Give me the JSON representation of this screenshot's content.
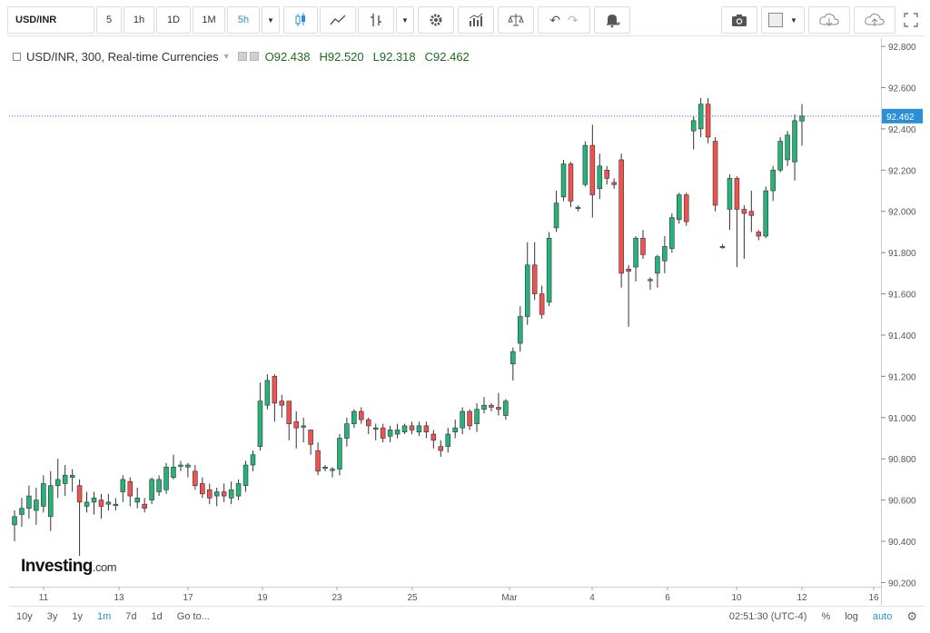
{
  "toolbar": {
    "symbol": "USD/INR",
    "intervals": [
      "5",
      "1h",
      "1D",
      "1M",
      "5h"
    ],
    "active_interval": "5h"
  },
  "legend": {
    "title": "USD/INR, 300, Real-time Currencies",
    "open": "O92.438",
    "high": "H92.520",
    "low": "L92.318",
    "close": "C92.462"
  },
  "last_price_label": "92.462",
  "logo": {
    "main": "Investing",
    "suffix": ".com"
  },
  "bottom_bar": {
    "ranges": [
      "10y",
      "3y",
      "1y",
      "1m",
      "7d",
      "1d",
      "Go to..."
    ],
    "active_range": "1m",
    "time": "02:51:30 (UTC-4)",
    "percent": "%",
    "log": "log",
    "auto": "auto"
  },
  "colors": {
    "up": "#26b37a",
    "down": "#ef5350",
    "last_line": "#2a5fd6",
    "label_bg": "#2a8fd6"
  },
  "chart_data": {
    "type": "candlestick",
    "title": "USD/INR, 300, Real-time Currencies",
    "y_ticks": [
      90.2,
      90.4,
      90.6,
      90.8,
      91.0,
      91.2,
      91.4,
      91.6,
      91.8,
      92.0,
      92.2,
      92.4,
      92.6,
      92.8
    ],
    "y_tick_labels": [
      "90.200",
      "90.400",
      "90.600",
      "90.800",
      "91.000",
      "91.200",
      "91.400",
      "91.600",
      "91.800",
      "92.000",
      "92.200",
      "92.400",
      "92.600",
      "92.800"
    ],
    "ylim": [
      90.18,
      92.84
    ],
    "x_tick_labels": [
      "11",
      "13",
      "17",
      "19",
      "23",
      "25",
      "Mar",
      "4",
      "6",
      "10",
      "12",
      "16"
    ],
    "last_price": 92.462,
    "candles": [
      [
        90.48,
        90.52,
        90.4,
        90.55
      ],
      [
        90.53,
        90.56,
        90.47,
        90.61
      ],
      [
        90.56,
        90.62,
        90.51,
        90.67
      ],
      [
        90.55,
        90.6,
        90.48,
        90.66
      ],
      [
        90.57,
        90.68,
        90.54,
        90.72
      ],
      [
        90.52,
        90.67,
        90.45,
        90.74
      ],
      [
        90.67,
        90.7,
        90.61,
        90.8
      ],
      [
        90.68,
        90.72,
        90.62,
        90.77
      ],
      [
        90.71,
        90.72,
        90.64,
        90.75
      ],
      [
        90.67,
        90.59,
        90.33,
        90.7
      ],
      [
        90.57,
        90.59,
        90.54,
        90.64
      ],
      [
        90.59,
        90.61,
        90.53,
        90.64
      ],
      [
        90.6,
        90.57,
        90.51,
        90.63
      ],
      [
        90.58,
        90.59,
        90.55,
        90.63
      ],
      [
        90.58,
        90.58,
        90.55,
        90.61
      ],
      [
        90.64,
        90.7,
        90.59,
        90.72
      ],
      [
        90.69,
        90.62,
        90.57,
        90.71
      ],
      [
        90.59,
        90.61,
        90.56,
        90.66
      ],
      [
        90.58,
        90.56,
        90.54,
        90.61
      ],
      [
        90.6,
        90.7,
        90.58,
        90.71
      ],
      [
        90.64,
        90.7,
        90.62,
        90.72
      ],
      [
        90.65,
        90.76,
        90.63,
        90.78
      ],
      [
        90.71,
        90.76,
        90.7,
        90.82
      ],
      [
        90.77,
        90.77,
        90.74,
        90.79
      ],
      [
        90.76,
        90.77,
        90.71,
        90.78
      ],
      [
        90.74,
        90.67,
        90.65,
        90.77
      ],
      [
        90.68,
        90.63,
        90.61,
        90.71
      ],
      [
        90.65,
        90.61,
        90.58,
        90.68
      ],
      [
        90.62,
        90.64,
        90.57,
        90.66
      ],
      [
        90.64,
        90.62,
        90.59,
        90.68
      ],
      [
        90.61,
        90.65,
        90.58,
        90.69
      ],
      [
        90.62,
        90.68,
        90.6,
        90.7
      ],
      [
        90.67,
        90.77,
        90.64,
        90.79
      ],
      [
        90.77,
        90.82,
        90.74,
        90.84
      ],
      [
        90.86,
        91.08,
        90.84,
        91.17
      ],
      [
        91.06,
        91.18,
        91.04,
        91.21
      ],
      [
        91.2,
        91.07,
        90.98,
        91.21
      ],
      [
        91.08,
        91.06,
        91.0,
        91.11
      ],
      [
        91.08,
        90.97,
        90.89,
        91.08
      ],
      [
        90.98,
        90.95,
        90.85,
        91.03
      ],
      [
        90.96,
        90.96,
        90.88,
        91.0
      ],
      [
        90.94,
        90.87,
        90.82,
        90.94
      ],
      [
        90.84,
        90.74,
        90.72,
        90.88
      ],
      [
        90.76,
        90.76,
        90.74,
        90.77
      ],
      [
        90.75,
        90.75,
        90.71,
        90.76
      ],
      [
        90.75,
        90.9,
        90.72,
        90.92
      ],
      [
        90.9,
        90.97,
        90.86,
        91.0
      ],
      [
        90.97,
        91.03,
        90.95,
        91.04
      ],
      [
        91.03,
        90.99,
        90.97,
        91.05
      ],
      [
        90.99,
        90.96,
        90.92,
        91.0
      ],
      [
        90.95,
        90.95,
        90.89,
        90.97
      ],
      [
        90.95,
        90.9,
        90.88,
        90.97
      ],
      [
        90.91,
        90.94,
        90.88,
        90.96
      ],
      [
        90.92,
        90.94,
        90.9,
        90.97
      ],
      [
        90.93,
        90.96,
        90.92,
        90.97
      ],
      [
        90.96,
        90.94,
        90.92,
        90.98
      ],
      [
        90.93,
        90.96,
        90.91,
        90.98
      ],
      [
        90.96,
        90.93,
        90.9,
        90.98
      ],
      [
        90.92,
        90.89,
        90.85,
        90.94
      ],
      [
        90.86,
        90.84,
        90.81,
        90.89
      ],
      [
        90.86,
        90.92,
        90.83,
        90.95
      ],
      [
        90.93,
        90.95,
        90.9,
        90.99
      ],
      [
        90.95,
        91.03,
        90.92,
        91.05
      ],
      [
        91.03,
        90.96,
        90.94,
        91.04
      ],
      [
        90.97,
        91.04,
        90.93,
        91.07
      ],
      [
        91.04,
        91.06,
        91.02,
        91.1
      ],
      [
        91.06,
        91.05,
        91.03,
        91.07
      ],
      [
        91.05,
        91.04,
        91.01,
        91.12
      ],
      [
        91.01,
        91.08,
        90.99,
        91.09
      ],
      [
        91.26,
        91.32,
        91.18,
        91.34
      ],
      [
        91.36,
        91.49,
        91.32,
        91.54
      ],
      [
        91.49,
        91.74,
        91.45,
        91.85
      ],
      [
        91.74,
        91.6,
        91.57,
        91.85
      ],
      [
        91.6,
        91.5,
        91.48,
        91.64
      ],
      [
        91.56,
        91.87,
        91.54,
        91.9
      ],
      [
        91.92,
        92.04,
        91.9,
        92.1
      ],
      [
        92.07,
        92.23,
        92.05,
        92.25
      ],
      [
        92.23,
        92.05,
        92.02,
        92.24
      ],
      [
        92.02,
        92.02,
        92.0,
        92.03
      ],
      [
        92.13,
        92.32,
        92.12,
        92.34
      ],
      [
        92.32,
        92.08,
        91.97,
        92.42
      ],
      [
        92.11,
        92.22,
        92.06,
        92.28
      ],
      [
        92.2,
        92.16,
        92.13,
        92.22
      ],
      [
        92.14,
        92.13,
        92.11,
        92.16
      ],
      [
        92.25,
        91.7,
        91.63,
        92.28
      ],
      [
        91.72,
        91.71,
        91.44,
        91.74
      ],
      [
        91.73,
        91.87,
        91.66,
        91.88
      ],
      [
        91.87,
        91.79,
        91.77,
        91.91
      ],
      [
        91.67,
        91.67,
        91.62,
        91.68
      ],
      [
        91.7,
        91.78,
        91.63,
        91.79
      ],
      [
        91.76,
        91.83,
        91.7,
        91.88
      ],
      [
        91.82,
        91.97,
        91.8,
        91.99
      ],
      [
        91.96,
        92.08,
        91.94,
        92.09
      ],
      [
        92.08,
        91.95,
        91.93,
        92.09
      ],
      [
        92.39,
        92.44,
        92.3,
        92.46
      ],
      [
        92.4,
        92.52,
        92.36,
        92.55
      ],
      [
        92.52,
        92.36,
        92.33,
        92.55
      ],
      [
        92.34,
        92.03,
        92.0,
        92.36
      ],
      [
        91.83,
        91.83,
        91.82,
        91.84
      ],
      [
        92.01,
        92.16,
        91.91,
        92.18
      ],
      [
        92.16,
        92.01,
        91.73,
        92.17
      ],
      [
        92.01,
        91.99,
        91.77,
        92.03
      ],
      [
        92.0,
        91.98,
        91.9,
        92.1
      ],
      [
        91.9,
        91.88,
        91.86,
        91.91
      ],
      [
        91.88,
        92.1,
        91.87,
        92.12
      ],
      [
        92.1,
        92.2,
        92.05,
        92.22
      ],
      [
        92.2,
        92.34,
        92.19,
        92.36
      ],
      [
        92.25,
        92.37,
        92.22,
        92.39
      ],
      [
        92.24,
        92.44,
        92.15,
        92.47
      ],
      [
        92.438,
        92.462,
        92.318,
        92.52
      ]
    ]
  }
}
